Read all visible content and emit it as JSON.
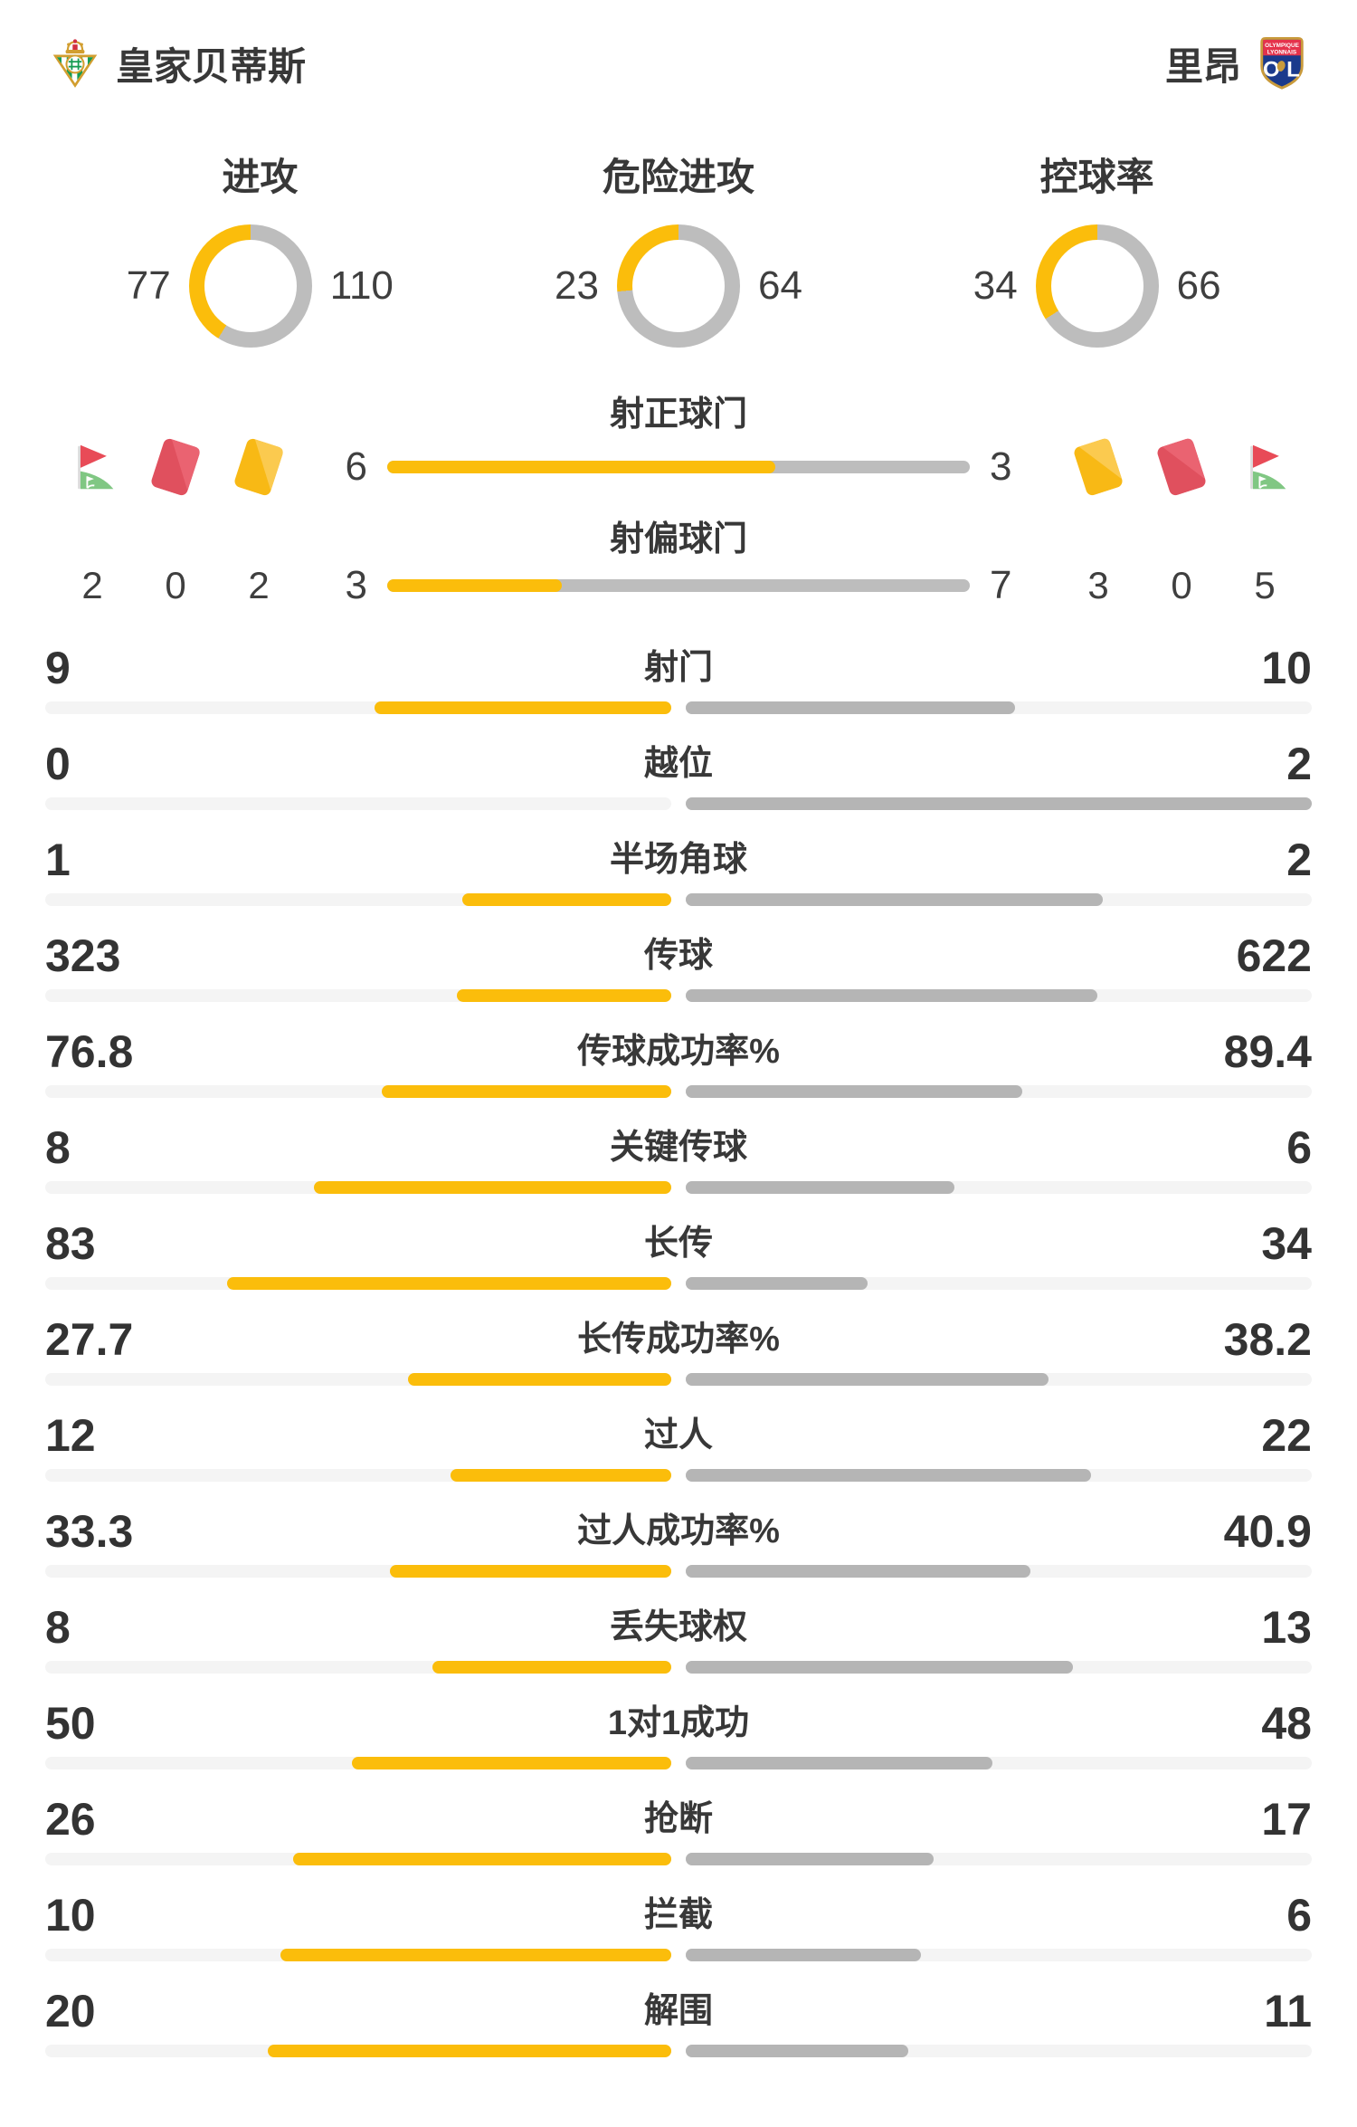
{
  "header": {
    "home_team": {
      "name": "皇家贝蒂斯",
      "logo": "real-betis-crest"
    },
    "away_team": {
      "name": "里昂",
      "logo": "olympique-lyonnais-crest"
    }
  },
  "donuts": [
    {
      "label": "进攻",
      "home": 77,
      "away": 110
    },
    {
      "label": "危险进攻",
      "home": 23,
      "away": 64
    },
    {
      "label": "控球率",
      "home": 34,
      "away": 66
    }
  ],
  "discipline": {
    "home": {
      "corner_kicks": 2,
      "red_cards": 0,
      "yellow_cards": 2
    },
    "away": {
      "yellow_cards": 3,
      "red_cards": 0,
      "corner_kicks": 5
    }
  },
  "shots": [
    {
      "label": "射正球门",
      "home": 6,
      "away": 3
    },
    {
      "label": "射偏球门",
      "home": 3,
      "away": 7
    }
  ],
  "stats": [
    {
      "label": "射门",
      "home": 9,
      "away": 10
    },
    {
      "label": "越位",
      "home": 0,
      "away": 2
    },
    {
      "label": "半场角球",
      "home": 1,
      "away": 2
    },
    {
      "label": "传球",
      "home": 323,
      "away": 622
    },
    {
      "label": "传球成功率%",
      "home": 76.8,
      "away": 89.4
    },
    {
      "label": "关键传球",
      "home": 8,
      "away": 6
    },
    {
      "label": "长传",
      "home": 83,
      "away": 34
    },
    {
      "label": "长传成功率%",
      "home": 27.7,
      "away": 38.2
    },
    {
      "label": "过人",
      "home": 12,
      "away": 22
    },
    {
      "label": "过人成功率%",
      "home": 33.3,
      "away": 40.9
    },
    {
      "label": "丢失球权",
      "home": 8,
      "away": 13
    },
    {
      "label": "1对1成功",
      "home": 50,
      "away": 48
    },
    {
      "label": "抢断",
      "home": 26,
      "away": 17
    },
    {
      "label": "拦截",
      "home": 10,
      "away": 6
    },
    {
      "label": "解围",
      "home": 20,
      "away": 11
    }
  ],
  "colors": {
    "home_fill": "#fbbd0b",
    "away_fill": "#b5b5b5",
    "donut_away": "#bdbdbd",
    "track": "#f4f4f4",
    "text": "#373737"
  }
}
